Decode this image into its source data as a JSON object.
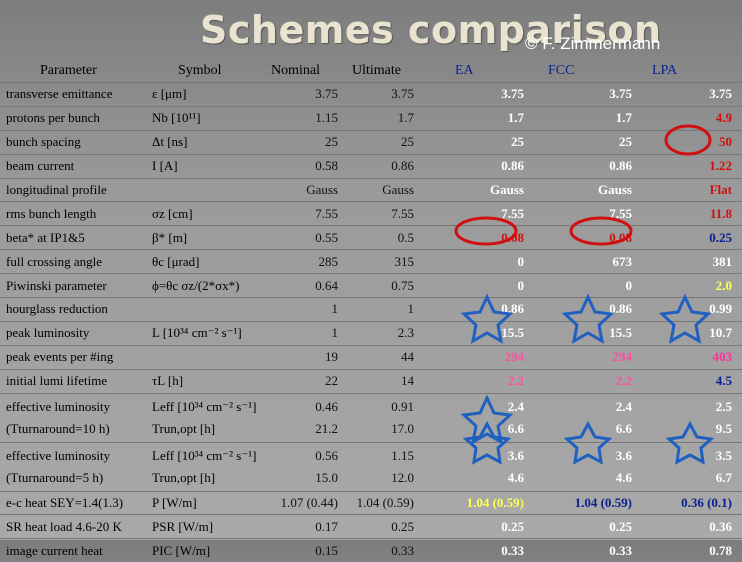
{
  "title": "Schemes comparison",
  "author": "© F. Zimmermann",
  "headers": {
    "parameter": "Parameter",
    "symbol": "Symbol",
    "nominal": "Nominal",
    "ultimate": "Ultimate",
    "ea": "EA",
    "fcc": "FCC",
    "lpa": "LPA"
  },
  "rows": [
    {
      "param": "transverse emittance",
      "symbol": "ε [μm]",
      "nom": "3.75",
      "ult": "3.75",
      "ea": "3.75",
      "fcc": "3.75",
      "lpa": "3.75"
    },
    {
      "param": "protons per bunch",
      "symbol": "Nb [10¹¹]",
      "nom": "1.15",
      "ult": "1.7",
      "ea": "1.7",
      "fcc": "1.7",
      "lpa": "4.9"
    },
    {
      "param": "bunch spacing",
      "symbol": "Δt [ns]",
      "nom": "25",
      "ult": "25",
      "ea": "25",
      "fcc": "25",
      "lpa": "50"
    },
    {
      "param": "beam current",
      "symbol": "I [A]",
      "nom": "0.58",
      "ult": "0.86",
      "ea": "0.86",
      "fcc": "0.86",
      "lpa": "1.22"
    },
    {
      "param": "longitudinal profile",
      "symbol": "",
      "nom": "Gauss",
      "ult": "Gauss",
      "ea": "Gauss",
      "fcc": "Gauss",
      "lpa": "Flat"
    },
    {
      "param": "rms bunch length",
      "symbol": "σz [cm]",
      "nom": "7.55",
      "ult": "7.55",
      "ea": "7.55",
      "fcc": "7.55",
      "lpa": "11.8"
    },
    {
      "param": "beta* at IP1&5",
      "symbol": "β* [m]",
      "nom": "0.55",
      "ult": "0.5",
      "ea": "0.08",
      "fcc": "0.08",
      "lpa": "0.25"
    },
    {
      "param": "full crossing angle",
      "symbol": "θc [μrad]",
      "nom": "285",
      "ult": "315",
      "ea": "0",
      "fcc": "673",
      "lpa": "381"
    },
    {
      "param": "Piwinski parameter",
      "symbol": "ϕ=θc σz/(2*σx*)",
      "nom": "0.64",
      "ult": "0.75",
      "ea": "0",
      "fcc": "0",
      "lpa": "2.0"
    },
    {
      "param": "hourglass reduction",
      "symbol": "",
      "nom": "1",
      "ult": "1",
      "ea": "0.86",
      "fcc": "0.86",
      "lpa": "0.99"
    },
    {
      "param": "peak luminosity",
      "symbol": "L [10³⁴ cm⁻² s⁻¹]",
      "nom": "1",
      "ult": "2.3",
      "ea": "15.5",
      "fcc": "15.5",
      "lpa": "10.7"
    },
    {
      "param": "peak events per #ing",
      "symbol": "",
      "nom": "19",
      "ult": "44",
      "ea": "294",
      "fcc": "294",
      "lpa": "403"
    },
    {
      "param": "initial lumi lifetime",
      "symbol": "τL [h]",
      "nom": "22",
      "ult": "14",
      "ea": "2.2",
      "fcc": "2.2",
      "lpa": "4.5"
    },
    {
      "param": "effective luminosity",
      "param2": "(Tturnaround=10 h)",
      "symbol": "Leff [10³⁴ cm⁻² s⁻¹]",
      "symbol2": "Trun,opt [h]",
      "nom": "0.46",
      "nom2": "21.2",
      "ult": "0.91",
      "ult2": "17.0",
      "ea": "2.4",
      "ea2": "6.6",
      "fcc": "2.4",
      "fcc2": "6.6",
      "lpa": "2.5",
      "lpa2": "9.5"
    },
    {
      "param": "effective luminosity",
      "param2": "(Tturnaround=5 h)",
      "symbol": "Leff [10³⁴ cm⁻² s⁻¹]",
      "symbol2": "Trun,opt [h]",
      "nom": "0.56",
      "nom2": "15.0",
      "ult": "1.15",
      "ult2": "12.0",
      "ea": "3.6",
      "ea2": "4.6",
      "fcc": "3.6",
      "fcc2": "4.6",
      "lpa": "3.5",
      "lpa2": "6.7"
    },
    {
      "param": "e-c heat SEY=1.4(1.3)",
      "symbol": "P [W/m]",
      "nom": "1.07 (0.44)",
      "ult": "1.04 (0.59)",
      "ea": "1.04 (0.59)",
      "fcc": "1.04 (0.59)",
      "lpa": "0.36 (0.1)"
    },
    {
      "param": "SR heat load 4.6-20 K",
      "symbol": "PSR [W/m]",
      "nom": "0.17",
      "ult": "0.25",
      "ea": "0.25",
      "fcc": "0.25",
      "lpa": "0.36"
    },
    {
      "param": "image current heat",
      "symbol": "PIC [W/m]",
      "nom": "0.15",
      "ult": "0.33",
      "ea": "0.33",
      "fcc": "0.33",
      "lpa": "0.78"
    }
  ],
  "colors": {
    "title": "#e9e3cf",
    "header_blue": "#0a1f8f",
    "highlight_red": "#d01010",
    "highlight_pink": "#ff4fa0",
    "highlight_yellow": "#ffff55",
    "star_blue": "#2060c0"
  }
}
